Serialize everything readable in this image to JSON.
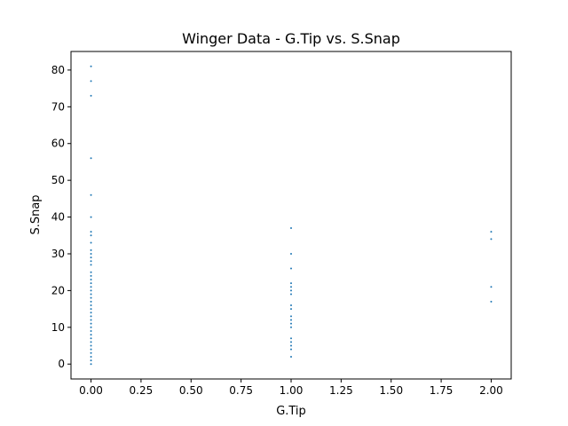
{
  "chart_data": {
    "type": "scatter",
    "title": "Winger Data - G.Tip vs. S.Snap",
    "xlabel": "G.Tip",
    "ylabel": "S.Snap",
    "xlim": [
      -0.1,
      2.1
    ],
    "ylim": [
      -4.05,
      85.05
    ],
    "xticks": [
      0.0,
      0.25,
      0.5,
      0.75,
      1.0,
      1.25,
      1.5,
      1.75,
      2.0
    ],
    "xtick_labels": [
      "0.00",
      "0.25",
      "0.50",
      "0.75",
      "1.00",
      "1.25",
      "1.50",
      "1.75",
      "2.00"
    ],
    "yticks": [
      0,
      10,
      20,
      30,
      40,
      50,
      60,
      70,
      80
    ],
    "ytick_labels": [
      "0",
      "10",
      "20",
      "30",
      "40",
      "50",
      "60",
      "70",
      "80"
    ],
    "marker_color": "#1f77b4",
    "series": [
      {
        "points": [
          [
            0,
            0
          ],
          [
            0,
            1
          ],
          [
            0,
            2
          ],
          [
            0,
            3
          ],
          [
            0,
            4
          ],
          [
            0,
            5
          ],
          [
            0,
            6
          ],
          [
            0,
            7
          ],
          [
            0,
            8
          ],
          [
            0,
            9
          ],
          [
            0,
            10
          ],
          [
            0,
            11
          ],
          [
            0,
            12
          ],
          [
            0,
            13
          ],
          [
            0,
            14
          ],
          [
            0,
            15
          ],
          [
            0,
            16
          ],
          [
            0,
            17
          ],
          [
            0,
            18
          ],
          [
            0,
            19
          ],
          [
            0,
            20
          ],
          [
            0,
            21
          ],
          [
            0,
            22
          ],
          [
            0,
            23
          ],
          [
            0,
            24
          ],
          [
            0,
            25
          ],
          [
            0,
            27
          ],
          [
            0,
            28
          ],
          [
            0,
            29
          ],
          [
            0,
            30
          ],
          [
            0,
            31
          ],
          [
            0,
            33
          ],
          [
            0,
            35
          ],
          [
            0,
            36
          ],
          [
            0,
            40
          ],
          [
            0,
            46
          ],
          [
            0,
            56
          ],
          [
            0,
            73
          ],
          [
            0,
            77
          ],
          [
            0,
            81
          ],
          [
            1,
            2
          ],
          [
            1,
            4
          ],
          [
            1,
            5
          ],
          [
            1,
            6
          ],
          [
            1,
            7
          ],
          [
            1,
            10
          ],
          [
            1,
            11
          ],
          [
            1,
            12
          ],
          [
            1,
            13
          ],
          [
            1,
            15
          ],
          [
            1,
            16
          ],
          [
            1,
            19
          ],
          [
            1,
            20
          ],
          [
            1,
            21
          ],
          [
            1,
            22
          ],
          [
            1,
            26
          ],
          [
            1,
            30
          ],
          [
            1,
            37
          ],
          [
            2,
            17
          ],
          [
            2,
            21
          ],
          [
            2,
            34
          ],
          [
            2,
            36
          ]
        ]
      }
    ]
  }
}
